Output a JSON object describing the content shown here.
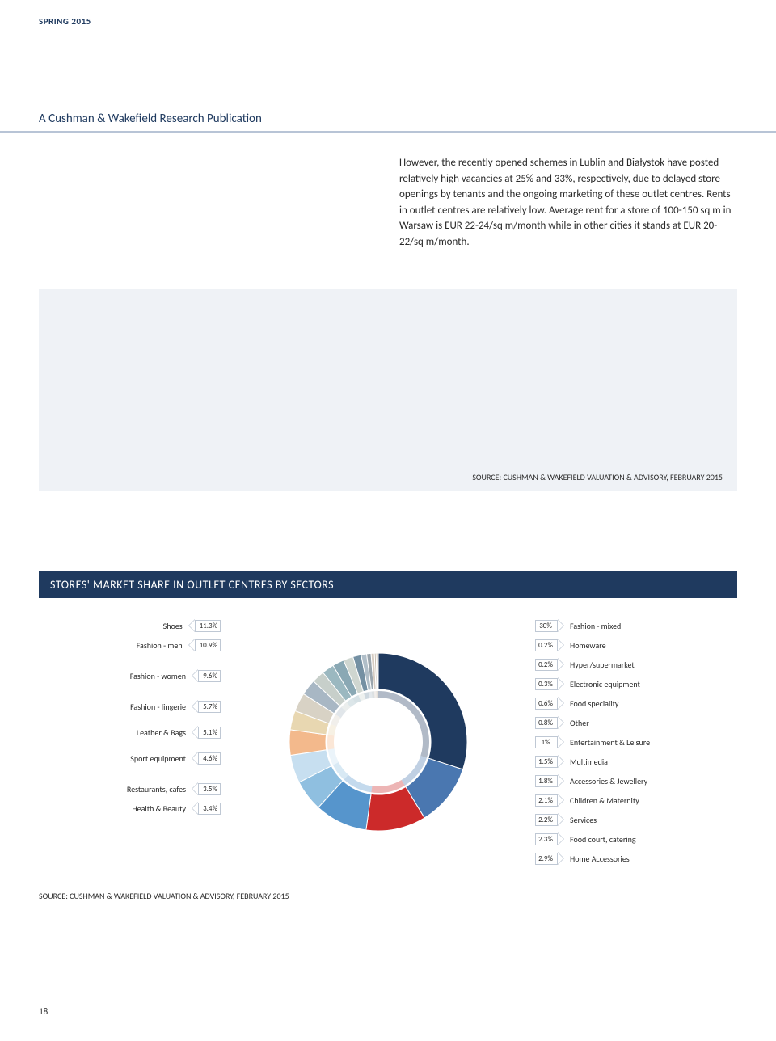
{
  "header": {
    "edition": "SPRING 2015",
    "publication": "A Cushman & Wakefield Research Publication"
  },
  "body": {
    "paragraph": "However, the recently opened schemes in Lublin and Białystok have posted relatively high vacancies at 25% and 33%, respectively, due to delayed store openings by tenants and the ongoing marketing of these outlet centres. Rents in outlet centres are relatively low. Average rent for a store of 100-150 sq m in Warsaw is EUR 22-24/sq m/month while in other cities it stands at EUR 20-22/sq m/month."
  },
  "grey_box": {
    "source": "SOURCE: CUSHMAN & WAKEFIELD VALUATION & ADVISORY, FEBRUARY 2015"
  },
  "chart": {
    "title": "STORES' MARKET SHARE IN OUTLET CENTRES BY SECTORS",
    "type": "donut",
    "background_color": "#ffffff",
    "donut_outer_radius": 110,
    "donut_inner_radius": 65,
    "inner_ring_width": 8,
    "left_legend": [
      {
        "label": "Shoes",
        "value": 11.3,
        "pct_text": "11.3%"
      },
      {
        "label": "Fashion - men",
        "value": 10.9,
        "pct_text": "10.9%"
      },
      {
        "label": "Fashion - women",
        "value": 9.6,
        "pct_text": "9.6%"
      },
      {
        "label": "Fashion - lingerie",
        "value": 5.7,
        "pct_text": "5.7%"
      },
      {
        "label": "Leather & Bags",
        "value": 5.1,
        "pct_text": "5.1%"
      },
      {
        "label": "Sport equipment",
        "value": 4.6,
        "pct_text": "4.6%"
      },
      {
        "label": "Restaurants, cafes",
        "value": 3.5,
        "pct_text": "3.5%"
      },
      {
        "label": "Health & Beauty",
        "value": 3.4,
        "pct_text": "3.4%"
      }
    ],
    "right_legend": [
      {
        "label": "Fashion - mixed",
        "value": 30.0,
        "pct_text": "30%"
      },
      {
        "label": "Homeware",
        "value": 0.2,
        "pct_text": "0.2%"
      },
      {
        "label": "Hyper/supermarket",
        "value": 0.2,
        "pct_text": "0.2%"
      },
      {
        "label": "Electronic equipment",
        "value": 0.3,
        "pct_text": "0.3%"
      },
      {
        "label": "Food speciality",
        "value": 0.6,
        "pct_text": "0.6%"
      },
      {
        "label": "Other",
        "value": 0.8,
        "pct_text": "0.8%"
      },
      {
        "label": "Entertainment & Leisure",
        "value": 1.0,
        "pct_text": "1%"
      },
      {
        "label": "Multimedia",
        "value": 1.5,
        "pct_text": "1.5%"
      },
      {
        "label": "Accessories & Jewellery",
        "value": 1.8,
        "pct_text": "1.8%"
      },
      {
        "label": "Children & Maternity",
        "value": 2.1,
        "pct_text": "2.1%"
      },
      {
        "label": "Services",
        "value": 2.2,
        "pct_text": "2.2%"
      },
      {
        "label": "Food court, catering",
        "value": 2.3,
        "pct_text": "2.3%"
      },
      {
        "label": "Home Accessories",
        "value": 2.9,
        "pct_text": "2.9%"
      }
    ],
    "slices": [
      {
        "label": "Fashion - mixed",
        "value": 30.0,
        "color": "#1f3a5f"
      },
      {
        "label": "Shoes",
        "value": 11.3,
        "color": "#4a77b0"
      },
      {
        "label": "Fashion - men",
        "value": 10.9,
        "color": "#cc2a2a"
      },
      {
        "label": "Fashion - women",
        "value": 9.6,
        "color": "#5695cc"
      },
      {
        "label": "Fashion - lingerie",
        "value": 5.7,
        "color": "#8fbfe0"
      },
      {
        "label": "Leather & Bags",
        "value": 5.1,
        "color": "#c7dff0"
      },
      {
        "label": "Sport equipment",
        "value": 4.6,
        "color": "#f3b98c"
      },
      {
        "label": "Restaurants, cafes",
        "value": 3.5,
        "color": "#e8d7b1"
      },
      {
        "label": "Health & Beauty",
        "value": 3.4,
        "color": "#d8d2c5"
      },
      {
        "label": "Home Accessories",
        "value": 2.9,
        "color": "#a8b7c4"
      },
      {
        "label": "Food court, catering",
        "value": 2.3,
        "color": "#c7cfca"
      },
      {
        "label": "Services",
        "value": 2.2,
        "color": "#9bb8c0"
      },
      {
        "label": "Children & Maternity",
        "value": 2.1,
        "color": "#8aa8b4"
      },
      {
        "label": "Accessories & Jewellery",
        "value": 1.8,
        "color": "#cfd6d0"
      },
      {
        "label": "Multimedia",
        "value": 1.5,
        "color": "#7490a3"
      },
      {
        "label": "Entertainment & Leisure",
        "value": 1.0,
        "color": "#b0bec8"
      },
      {
        "label": "Other",
        "value": 0.8,
        "color": "#9aa5ad"
      },
      {
        "label": "Food speciality",
        "value": 0.6,
        "color": "#d6ccc2"
      },
      {
        "label": "Electronic equipment",
        "value": 0.3,
        "color": "#c2b8a9"
      },
      {
        "label": "Hyper/supermarket",
        "value": 0.2,
        "color": "#b5aa98"
      },
      {
        "label": "Homeware",
        "value": 0.2,
        "color": "#a89c89"
      }
    ],
    "source": "SOURCE: CUSHMAN & WAKEFIELD VALUATION & ADVISORY, FEBRUARY 2015"
  },
  "page_number": "18"
}
